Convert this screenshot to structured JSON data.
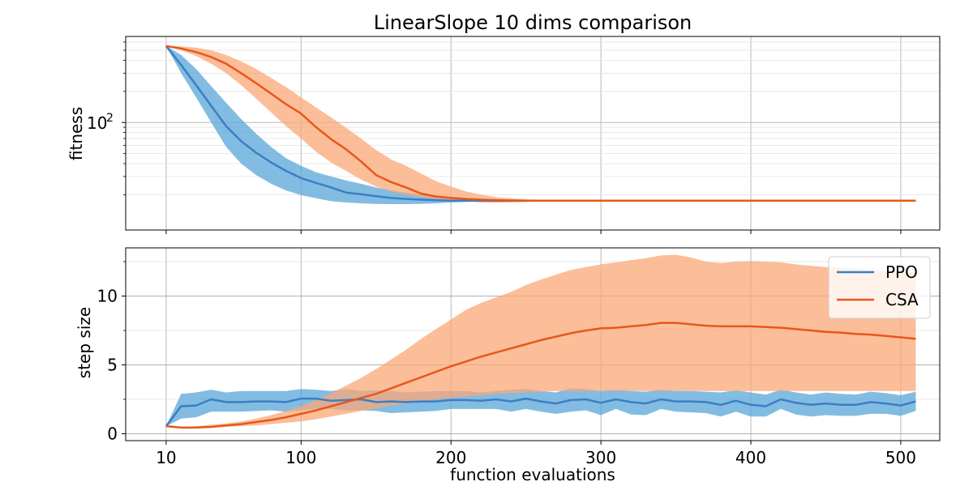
{
  "chart_data": [
    {
      "type": "line",
      "title": "LinearSlope 10 dims comparison",
      "xlabel": "",
      "ylabel": "fitness",
      "yscale": "log",
      "ylim": [
        9.1,
        680
      ],
      "xlim": [
        -17,
        526
      ],
      "x_ticks": [
        10,
        100,
        200,
        300,
        400,
        500
      ],
      "y_tick_labels": [
        {
          "value": 100,
          "base": "10",
          "exp": "2"
        }
      ],
      "y_major_ticks": [
        100
      ],
      "y_minor_ticks": [
        20,
        30,
        40,
        50,
        60,
        70,
        80,
        90,
        200,
        300,
        400,
        500,
        600
      ],
      "grid": true,
      "series": [
        {
          "name": "PPO",
          "color": "#3b7fc4",
          "band_color": "#5aa5d8",
          "x": [
            10,
            20,
            30,
            40,
            50,
            60,
            70,
            80,
            90,
            100,
            110,
            120,
            130,
            140,
            150,
            160,
            170,
            180,
            190,
            200,
            210,
            220,
            230,
            240,
            250,
            260,
            270,
            280,
            290,
            300,
            320,
            340,
            360,
            380,
            400,
            420,
            440,
            460,
            480,
            500,
            510
          ],
          "y": [
            550,
            360,
            230,
            145,
            92,
            66,
            51,
            41,
            34,
            29,
            26,
            23.5,
            21,
            20.2,
            19.3,
            18.6,
            18.2,
            17.9,
            17.7,
            17.5,
            17.5,
            17.5,
            17.5,
            17.5,
            17.5,
            17.5,
            17.5,
            17.5,
            17.5,
            17.5,
            17.5,
            17.5,
            17.5,
            17.5,
            17.5,
            17.5,
            17.5,
            17.5,
            17.5,
            17.5,
            17.5
          ],
          "lower": [
            550,
            300,
            175,
            100,
            58,
            40,
            31,
            25.5,
            22,
            19.8,
            18.5,
            17.3,
            16.8,
            16.5,
            16.3,
            16.2,
            16.2,
            16.3,
            16.5,
            16.8,
            17,
            17.2,
            17.4,
            17.5,
            17.5,
            17.5,
            17.5,
            17.5,
            17.5,
            17.5,
            17.5,
            17.5,
            17.5,
            17.5,
            17.5,
            17.5,
            17.5,
            17.5,
            17.5,
            17.5,
            17.5
          ],
          "upper": [
            550,
            450,
            330,
            225,
            155,
            108,
            78,
            58,
            45,
            38,
            33,
            30,
            27.5,
            25.5,
            23.5,
            22,
            21,
            20,
            19.3,
            18.7,
            18.2,
            17.9,
            17.7,
            17.5,
            17.5,
            17.5,
            17.5,
            17.5,
            17.5,
            17.5,
            17.5,
            17.5,
            17.5,
            17.5,
            17.5,
            17.5,
            17.5,
            17.5,
            17.5,
            17.5,
            17.5
          ]
        },
        {
          "name": "CSA",
          "color": "#e8571a",
          "band_color": "#f9a877",
          "x": [
            10,
            20,
            30,
            40,
            50,
            60,
            70,
            80,
            90,
            100,
            110,
            120,
            130,
            140,
            150,
            160,
            170,
            180,
            190,
            200,
            210,
            220,
            230,
            240,
            250,
            260,
            270,
            280,
            290,
            300,
            320,
            340,
            360,
            380,
            400,
            420,
            440,
            460,
            480,
            500,
            510
          ],
          "y": [
            550,
            520,
            480,
            430,
            370,
            300,
            240,
            190,
            150,
            122,
            90,
            69,
            55,
            42,
            31,
            26.5,
            23.5,
            20.5,
            19.2,
            18.6,
            18.2,
            17.9,
            17.7,
            17.6,
            17.55,
            17.5,
            17.5,
            17.5,
            17.5,
            17.5,
            17.5,
            17.5,
            17.5,
            17.5,
            17.5,
            17.5,
            17.5,
            17.5,
            17.5,
            17.5,
            17.5
          ],
          "lower": [
            550,
            500,
            440,
            370,
            300,
            230,
            170,
            125,
            92,
            70,
            52,
            41,
            34,
            28,
            24,
            21.5,
            20,
            19,
            18.2,
            17.7,
            17.2,
            16.8,
            16.7,
            16.8,
            17,
            17.2,
            17.4,
            17.5,
            17.5,
            17.5,
            17.5,
            17.5,
            17.5,
            17.5,
            17.5,
            17.5,
            17.5,
            17.5,
            17.5,
            17.5,
            17.5
          ],
          "upper": [
            550,
            545,
            530,
            500,
            450,
            390,
            330,
            270,
            220,
            175,
            140,
            112,
            89,
            70,
            54,
            44,
            38,
            32,
            27,
            24,
            21.5,
            20,
            19,
            18.4,
            18,
            17.8,
            17.7,
            17.6,
            17.5,
            17.5,
            17.5,
            17.5,
            17.5,
            17.5,
            17.5,
            17.5,
            17.5,
            17.5,
            17.5,
            17.5,
            17.5
          ]
        }
      ]
    },
    {
      "type": "line",
      "title": "",
      "xlabel": "function evaluations",
      "ylabel": "step size",
      "ylim": [
        -0.5,
        13.5
      ],
      "xlim": [
        -17,
        526
      ],
      "x_ticks": [
        10,
        100,
        200,
        300,
        400,
        500
      ],
      "y_ticks": [
        0,
        5,
        10
      ],
      "y_minor_ticks": [
        2.5,
        7.5,
        12.5
      ],
      "grid": true,
      "legend": "top-right",
      "series": [
        {
          "name": "PPO",
          "color": "#3b7fc4",
          "band_color": "#5aa5d8",
          "x": [
            10,
            20,
            30,
            40,
            50,
            60,
            70,
            80,
            90,
            100,
            110,
            120,
            130,
            140,
            150,
            160,
            170,
            180,
            190,
            200,
            210,
            220,
            230,
            240,
            250,
            260,
            270,
            280,
            290,
            300,
            310,
            320,
            330,
            340,
            350,
            360,
            370,
            380,
            390,
            400,
            410,
            420,
            430,
            440,
            450,
            460,
            470,
            480,
            490,
            500,
            510
          ],
          "y": [
            0.55,
            2.0,
            2.05,
            2.5,
            2.3,
            2.3,
            2.35,
            2.35,
            2.3,
            2.55,
            2.55,
            2.4,
            2.45,
            2.5,
            2.3,
            2.35,
            2.3,
            2.35,
            2.35,
            2.45,
            2.45,
            2.4,
            2.5,
            2.35,
            2.55,
            2.35,
            2.2,
            2.45,
            2.5,
            2.25,
            2.5,
            2.3,
            2.2,
            2.5,
            2.35,
            2.35,
            2.3,
            2.1,
            2.4,
            2.1,
            2.0,
            2.5,
            2.25,
            2.1,
            2.2,
            2.1,
            2.1,
            2.3,
            2.2,
            2.05,
            2.35
          ],
          "lower": [
            0.55,
            1.1,
            1.2,
            1.6,
            1.6,
            1.6,
            1.65,
            1.7,
            1.6,
            1.7,
            1.8,
            1.8,
            1.7,
            1.7,
            1.65,
            1.5,
            1.55,
            1.6,
            1.65,
            1.8,
            1.8,
            1.8,
            1.8,
            1.6,
            1.8,
            1.6,
            1.45,
            1.6,
            1.7,
            1.35,
            1.8,
            1.4,
            1.35,
            1.8,
            1.6,
            1.55,
            1.5,
            1.25,
            1.6,
            1.25,
            1.25,
            1.8,
            1.4,
            1.25,
            1.35,
            1.3,
            1.3,
            1.45,
            1.45,
            1.3,
            1.65
          ],
          "upper": [
            0.55,
            2.9,
            3.0,
            3.2,
            3.0,
            3.1,
            3.1,
            3.1,
            3.1,
            3.25,
            3.2,
            3.1,
            3.25,
            3.1,
            3.15,
            3.1,
            3.0,
            3.05,
            3.1,
            3.1,
            3.1,
            3.0,
            3.1,
            3.2,
            3.25,
            3.1,
            3.0,
            3.3,
            3.25,
            3.1,
            3.2,
            3.1,
            3.05,
            3.2,
            3.1,
            3.1,
            3.05,
            3.0,
            3.15,
            3.0,
            2.85,
            3.2,
            3.0,
            2.85,
            3.0,
            2.9,
            2.85,
            3.05,
            2.95,
            2.8,
            3.05
          ]
        },
        {
          "name": "CSA",
          "color": "#e8571a",
          "band_color": "#f9a877",
          "x": [
            10,
            20,
            30,
            40,
            50,
            60,
            70,
            80,
            90,
            100,
            110,
            120,
            130,
            140,
            150,
            160,
            170,
            180,
            190,
            200,
            210,
            220,
            230,
            240,
            250,
            260,
            270,
            280,
            290,
            300,
            310,
            320,
            330,
            340,
            350,
            360,
            370,
            380,
            390,
            400,
            410,
            420,
            430,
            440,
            450,
            460,
            470,
            480,
            490,
            500,
            510
          ],
          "y": [
            0.55,
            0.45,
            0.45,
            0.5,
            0.6,
            0.7,
            0.85,
            1.0,
            1.2,
            1.45,
            1.7,
            2.0,
            2.3,
            2.6,
            2.9,
            3.3,
            3.7,
            4.1,
            4.5,
            4.9,
            5.25,
            5.6,
            5.9,
            6.2,
            6.5,
            6.8,
            7.05,
            7.3,
            7.5,
            7.65,
            7.7,
            7.8,
            7.9,
            8.05,
            8.05,
            7.95,
            7.85,
            7.8,
            7.8,
            7.8,
            7.75,
            7.7,
            7.6,
            7.5,
            7.4,
            7.35,
            7.25,
            7.2,
            7.1,
            7.0,
            6.9
          ],
          "lower": [
            0.55,
            0.45,
            0.45,
            0.45,
            0.5,
            0.55,
            0.6,
            0.7,
            0.8,
            0.9,
            1.05,
            1.25,
            1.45,
            1.65,
            1.85,
            2.05,
            2.2,
            2.35,
            2.5,
            2.6,
            2.7,
            2.8,
            2.9,
            2.95,
            3.0,
            3.05,
            3.1,
            3.1,
            3.1,
            3.1,
            3.1,
            3.1,
            3.1,
            3.1,
            3.1,
            3.1,
            3.1,
            3.1,
            3.1,
            3.1,
            3.1,
            3.1,
            3.1,
            3.1,
            3.1,
            3.1,
            3.1,
            3.1,
            3.1,
            3.1,
            3.1
          ],
          "upper": [
            0.55,
            0.5,
            0.55,
            0.65,
            0.75,
            0.9,
            1.1,
            1.35,
            1.65,
            2.0,
            2.45,
            2.95,
            3.5,
            4.05,
            4.7,
            5.4,
            6.1,
            6.9,
            7.6,
            8.3,
            9.0,
            9.5,
            9.9,
            10.3,
            10.8,
            11.2,
            11.55,
            11.9,
            12.1,
            12.3,
            12.45,
            12.6,
            12.75,
            12.95,
            13.0,
            12.8,
            12.5,
            12.4,
            12.5,
            12.55,
            12.5,
            12.45,
            12.3,
            12.2,
            12.1,
            12.05,
            12.0,
            11.9,
            11.8,
            11.75,
            11.7
          ]
        }
      ]
    }
  ]
}
